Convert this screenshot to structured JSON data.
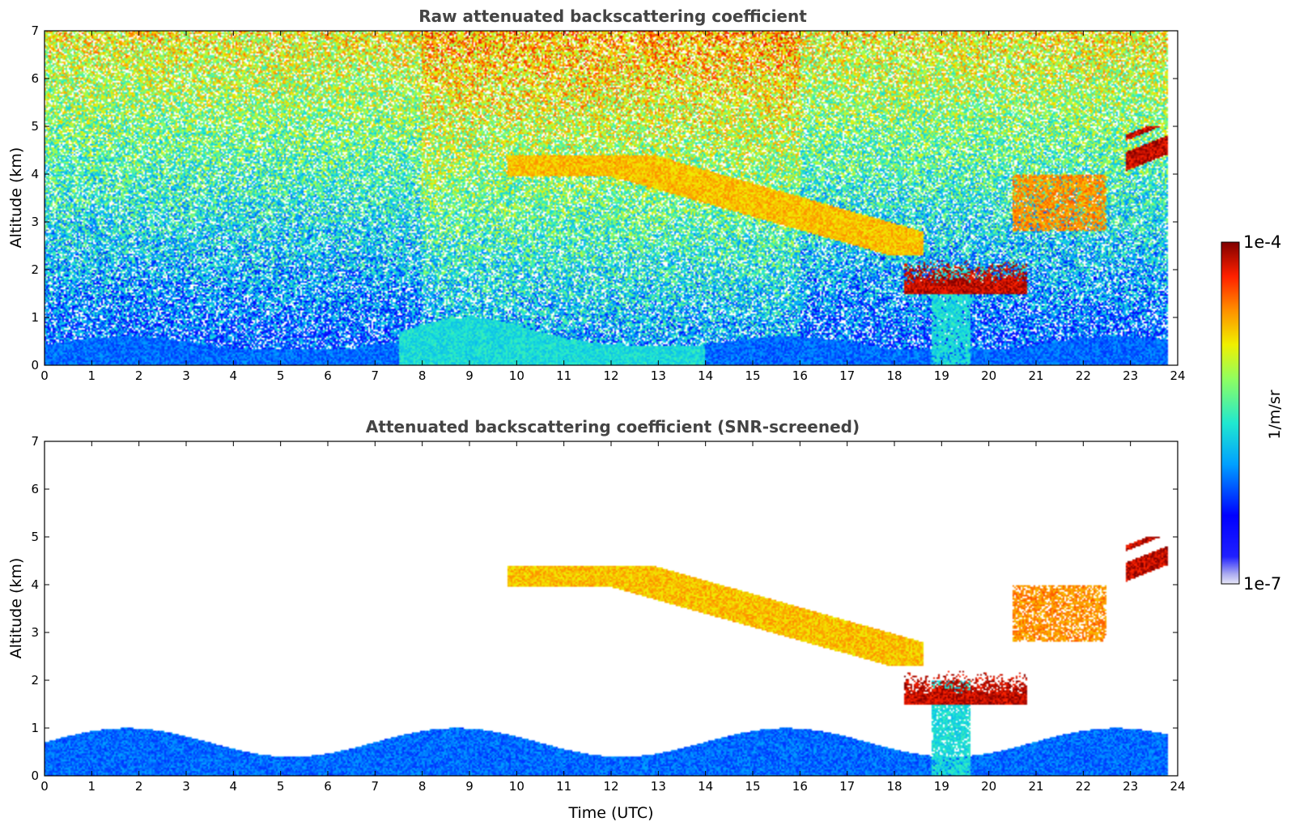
{
  "chart_data": [
    {
      "type": "heatmap",
      "title": "Raw attenuated backscattering coefficient",
      "xlabel": "",
      "ylabel": "Altitude (km)",
      "xlim": [
        0,
        24
      ],
      "ylim": [
        0,
        7
      ],
      "x_ticks": [
        "0",
        "1",
        "2",
        "3",
        "4",
        "5",
        "6",
        "7",
        "8",
        "9",
        "10",
        "11",
        "12",
        "13",
        "14",
        "15",
        "16",
        "17",
        "18",
        "19",
        "20",
        "21",
        "22",
        "23",
        "24"
      ],
      "y_ticks": [
        "0",
        "1",
        "2",
        "3",
        "4",
        "5",
        "6",
        "7"
      ],
      "data_end_hour": 23.8,
      "screened": false,
      "features": [
        {
          "name": "boundary layer",
          "x": [
            0,
            23.8
          ],
          "y": [
            0,
            0.6
          ],
          "level": 0.3
        },
        {
          "name": "aerosol plume",
          "x": [
            7.5,
            14
          ],
          "y": [
            0,
            1.0
          ],
          "level": 0.45
        },
        {
          "name": "elevated layer",
          "x": [
            9.8,
            18.6
          ],
          "y": [
            2.3,
            4.4
          ],
          "level": 0.75
        },
        {
          "name": "cloud base",
          "x": [
            18.2,
            20.8
          ],
          "y": [
            1.5,
            2.2
          ],
          "level": 0.95
        },
        {
          "name": "precipitation",
          "x": [
            18.8,
            19.6
          ],
          "y": [
            0,
            2.0
          ],
          "level": 0.45
        },
        {
          "name": "mid cloud",
          "x": [
            20.5,
            22.5
          ],
          "y": [
            2.8,
            4.0
          ],
          "level": 0.8
        },
        {
          "name": "high cloud",
          "x": [
            22.9,
            23.8
          ],
          "y": [
            4.0,
            5.0
          ],
          "level": 0.95
        }
      ]
    },
    {
      "type": "heatmap",
      "title": "Attenuated backscattering coefficient (SNR-screened)",
      "xlabel": "Time (UTC)",
      "ylabel": "Altitude (km)",
      "xlim": [
        0,
        24
      ],
      "ylim": [
        0,
        7
      ],
      "x_ticks": [
        "0",
        "1",
        "2",
        "3",
        "4",
        "5",
        "6",
        "7",
        "8",
        "9",
        "10",
        "11",
        "12",
        "13",
        "14",
        "15",
        "16",
        "17",
        "18",
        "19",
        "20",
        "21",
        "22",
        "23",
        "24"
      ],
      "y_ticks": [
        "0",
        "1",
        "2",
        "3",
        "4",
        "5",
        "6",
        "7"
      ],
      "data_end_hour": 23.8,
      "screened": true,
      "features": [
        {
          "name": "boundary layer",
          "x": [
            0,
            23.8
          ],
          "y": [
            0,
            1.0
          ],
          "level": 0.3
        },
        {
          "name": "elevated layer",
          "x": [
            9.8,
            18.6
          ],
          "y": [
            2.3,
            4.4
          ],
          "level": 0.75
        },
        {
          "name": "cloud base",
          "x": [
            18.2,
            20.8
          ],
          "y": [
            1.5,
            2.2
          ],
          "level": 0.95
        },
        {
          "name": "precipitation",
          "x": [
            18.8,
            19.6
          ],
          "y": [
            0,
            2.0
          ],
          "level": 0.45
        },
        {
          "name": "mid cloud",
          "x": [
            20.5,
            22.5
          ],
          "y": [
            2.8,
            4.0
          ],
          "level": 0.8
        },
        {
          "name": "high cloud",
          "x": [
            22.9,
            23.8
          ],
          "y": [
            4.0,
            5.0
          ],
          "level": 0.95
        }
      ]
    }
  ],
  "colorbar": {
    "label": "1/m/sr",
    "max_label": "1e-4",
    "min_label": "1e-7",
    "colormap": "jet",
    "min_color": "#e8e8f8",
    "max_color": "#800000"
  }
}
